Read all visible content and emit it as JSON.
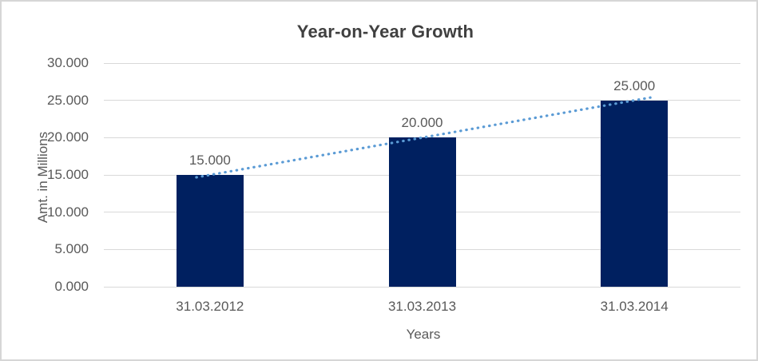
{
  "chart_data": {
    "type": "bar",
    "title": "Year-on-Year Growth",
    "xlabel": "Years",
    "ylabel": "Amt. in Millions",
    "categories": [
      "31.03.2012",
      "31.03.2013",
      "31.03.2014"
    ],
    "values": [
      15.0,
      20.0,
      25.0
    ],
    "data_labels": [
      "15.000",
      "20.000",
      "25.000"
    ],
    "ytick_labels": [
      "30.000",
      "25.000",
      "20.000",
      "15.000",
      "10.000",
      "5.000",
      "0.000"
    ],
    "ylim": [
      0,
      30
    ],
    "grid": true,
    "legend_position": "none",
    "bar_color": "#002060",
    "trendline": {
      "type": "linear",
      "style": "dotted",
      "color": "#5B9BD5"
    },
    "gridline_color": "#D9D9D9",
    "axis_text_color": "#595959",
    "title_color": "#404040",
    "background": "#FFFFFF",
    "border_color": "#D6D6D6"
  }
}
